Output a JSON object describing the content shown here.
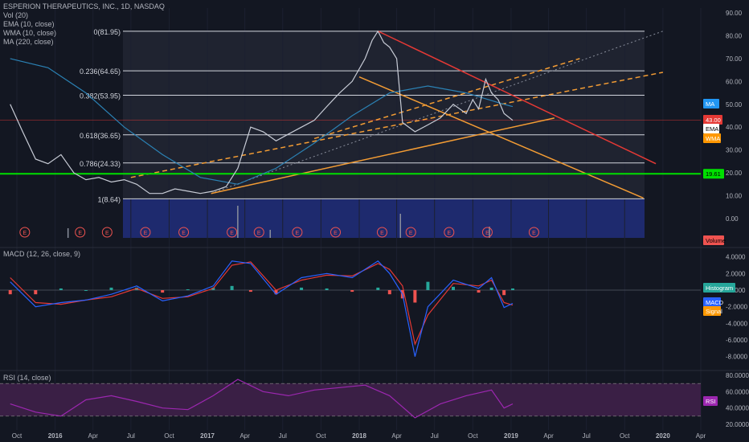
{
  "header": {
    "title": "ESPERION THERAPEUTICS, INC., 1D, NASDAQ",
    "indicators": [
      "Vol (20)",
      "EMA (10, close)",
      "WMA (10, close)",
      "MA (220, close)"
    ]
  },
  "panes": {
    "macd_title": "MACD (12, 26, close, 9)",
    "rsi_title": "RSI (14, close)"
  },
  "badges": {
    "ma": "MA",
    "price": "43.00",
    "ema": "EMA",
    "wma": "WMA",
    "support": "19.61",
    "volume": "Volume",
    "histogram": "Histogram",
    "macd": "MACD",
    "signal": "Signal",
    "rsi": "RSI"
  },
  "fib_levels": [
    {
      "label": "0(81.95)",
      "value": 81.95
    },
    {
      "label": "0.236(64.65)",
      "value": 64.65
    },
    {
      "label": "0.382(53.95)",
      "value": 53.95
    },
    {
      "label": "0.618(36.65)",
      "value": 36.65
    },
    {
      "label": "0.786(24.33)",
      "value": 24.33
    },
    {
      "label": "1(8.64)",
      "value": 8.64
    }
  ],
  "earnings_marker": "E",
  "colors": {
    "background": "#131722",
    "price_line": "#c8ccd6",
    "ma": "#2b82b5",
    "ema_wma": "#e07b2e",
    "trend_orange": "#f39c34",
    "trend_red": "#e53935",
    "support_green": "#00e000",
    "volume_area": "#1e2a6e",
    "macd_line": "#2962ff",
    "signal_line": "#e53935",
    "hist_pos": "#26a69a",
    "hist_neg": "#ef5350",
    "rsi_line": "#9c27b0",
    "rsi_band": "#3a1f45"
  },
  "chart_data": [
    {
      "type": "line",
      "title": "ESPERION THERAPEUTICS, INC., 1D, NASDAQ",
      "x_tick_labels": [
        "Oct",
        "2016",
        "Apr",
        "Jul",
        "Oct",
        "2017",
        "Apr",
        "Jul",
        "Oct",
        "2018",
        "Apr",
        "Jul",
        "Oct",
        "2019",
        "Apr",
        "Jul",
        "Oct",
        "2020",
        "Apr"
      ],
      "y_tick_labels": [
        "90.00",
        "80.00",
        "70.00",
        "60.00",
        "50.00",
        "40.00",
        "30.00",
        "20.00",
        "10.00",
        "0.00"
      ],
      "ylim": [
        -5,
        90
      ],
      "series": [
        {
          "name": "Price",
          "x": [
            "2015-09-15",
            "2015-10-15",
            "2015-11-15",
            "2015-12-15",
            "2016-01-15",
            "2016-02-15",
            "2016-03-15",
            "2016-04-15",
            "2016-05-15",
            "2016-06-15",
            "2016-07-15",
            "2016-08-15",
            "2016-09-15",
            "2016-10-15",
            "2016-11-15",
            "2016-12-15",
            "2017-01-15",
            "2017-02-15",
            "2017-03-15",
            "2017-04-15",
            "2017-05-15",
            "2017-06-15",
            "2017-07-15",
            "2017-08-15",
            "2017-09-15",
            "2017-10-15",
            "2017-11-15",
            "2017-12-15",
            "2018-01-15",
            "2018-02-01",
            "2018-02-15",
            "2018-03-01",
            "2018-03-15",
            "2018-04-01",
            "2018-04-15",
            "2018-05-15",
            "2018-06-15",
            "2018-07-15",
            "2018-08-15",
            "2018-09-15",
            "2018-10-01",
            "2018-10-15",
            "2018-11-01",
            "2018-11-15",
            "2018-12-01",
            "2018-12-15",
            "2019-01-05"
          ],
          "values": [
            50,
            38,
            26,
            24,
            28,
            20,
            17,
            18,
            16,
            17,
            15,
            11,
            11,
            13,
            12,
            11,
            12,
            14,
            22,
            40,
            38,
            34,
            37,
            40,
            43,
            49,
            55,
            60,
            70,
            78,
            82,
            77,
            75,
            70,
            42,
            38,
            41,
            44,
            50,
            46,
            52,
            48,
            61,
            55,
            52,
            46,
            43
          ]
        },
        {
          "name": "MA",
          "x": [
            "2015-09-15",
            "2015-12-15",
            "2016-03-15",
            "2016-06-15",
            "2016-09-15",
            "2016-12-15",
            "2017-03-15",
            "2017-06-15",
            "2017-09-15",
            "2017-12-15",
            "2018-03-15",
            "2018-06-15",
            "2018-09-15",
            "2018-12-15",
            "2019-01-05"
          ],
          "values": [
            70,
            66,
            55,
            40,
            28,
            18,
            15,
            22,
            33,
            45,
            55,
            58,
            55,
            50,
            49
          ]
        }
      ],
      "trendlines": {
        "red_descending": [
          [
            "2018-02-15",
            82
          ],
          [
            "2019-12-15",
            24
          ]
        ],
        "orange_support": [
          [
            "2017-01-10",
            11
          ],
          [
            "2019-04-15",
            44
          ]
        ],
        "orange_dashed_lower": [
          [
            "2016-07-01",
            18
          ],
          [
            "2020-01-01",
            64
          ]
        ],
        "orange_dashed_upper": [
          [
            "2017-09-15",
            35
          ],
          [
            "2019-06-15",
            70
          ]
        ],
        "orange_descending": [
          [
            "2018-01-01",
            62
          ],
          [
            "2019-11-15",
            9
          ]
        ],
        "gray_dotted": [
          [
            "2017-01-10",
            11
          ],
          [
            "2020-01-01",
            82
          ]
        ],
        "green_horizontal": 19.61
      }
    },
    {
      "type": "bar",
      "title": "MACD (12, 26, close, 9)",
      "y_tick_labels": [
        "4.0000",
        "2.0000",
        "0.0000",
        "-2.0000",
        "-4.0000",
        "-6.0000",
        "-8.0000"
      ],
      "ylim": [
        -8.5,
        5
      ],
      "series": [
        {
          "name": "MACD",
          "x": [
            "2015-09-15",
            "2015-11-15",
            "2016-01-15",
            "2016-03-15",
            "2016-05-15",
            "2016-07-15",
            "2016-09-15",
            "2016-11-15",
            "2017-01-15",
            "2017-03-01",
            "2017-04-15",
            "2017-06-15",
            "2017-08-15",
            "2017-10-15",
            "2017-12-15",
            "2018-02-15",
            "2018-03-15",
            "2018-04-15",
            "2018-05-15",
            "2018-06-15",
            "2018-08-15",
            "2018-10-15",
            "2018-11-15",
            "2018-12-15",
            "2019-01-05"
          ],
          "values": [
            1,
            -2,
            -1.5,
            -1.2,
            -0.5,
            0.5,
            -1.3,
            -0.7,
            0.5,
            3.5,
            3.2,
            -0.5,
            1.5,
            2,
            1.5,
            3.5,
            2,
            -0.5,
            -8,
            -2,
            1.2,
            0.2,
            1.5,
            -2.1,
            -1.6
          ]
        },
        {
          "name": "Signal",
          "x": [
            "2015-09-15",
            "2015-11-15",
            "2016-01-15",
            "2016-03-15",
            "2016-05-15",
            "2016-07-15",
            "2016-09-15",
            "2016-11-15",
            "2017-01-15",
            "2017-03-01",
            "2017-04-15",
            "2017-06-15",
            "2017-08-15",
            "2017-10-15",
            "2017-12-15",
            "2018-02-15",
            "2018-03-15",
            "2018-04-15",
            "2018-05-15",
            "2018-06-15",
            "2018-08-15",
            "2018-10-15",
            "2018-11-15",
            "2018-12-15",
            "2019-01-05"
          ],
          "values": [
            1.5,
            -1.5,
            -1.7,
            -1.2,
            -0.8,
            0.2,
            -1,
            -0.8,
            0.2,
            3,
            3.4,
            0,
            1.2,
            1.8,
            1.7,
            3.2,
            2.5,
            0.5,
            -6.5,
            -3,
            0.8,
            0.5,
            1.2,
            -1.5,
            -1.8
          ]
        }
      ]
    },
    {
      "type": "line",
      "title": "RSI (14, close)",
      "y_tick_labels": [
        "80.0000",
        "60.0000",
        "40.0000",
        "20.0000"
      ],
      "ylim": [
        15,
        85
      ],
      "series": [
        {
          "name": "RSI",
          "x": [
            "2015-09-15",
            "2015-11-15",
            "2016-01-15",
            "2016-03-15",
            "2016-05-15",
            "2016-07-15",
            "2016-09-15",
            "2016-11-15",
            "2017-01-15",
            "2017-03-15",
            "2017-05-15",
            "2017-07-15",
            "2017-09-15",
            "2017-11-15",
            "2018-01-15",
            "2018-03-15",
            "2018-05-15",
            "2018-07-15",
            "2018-09-15",
            "2018-11-15",
            "2018-12-15",
            "2019-01-05"
          ],
          "values": [
            45,
            35,
            30,
            50,
            55,
            48,
            40,
            38,
            55,
            75,
            60,
            55,
            62,
            65,
            68,
            55,
            28,
            45,
            55,
            62,
            40,
            45
          ]
        }
      ]
    }
  ]
}
